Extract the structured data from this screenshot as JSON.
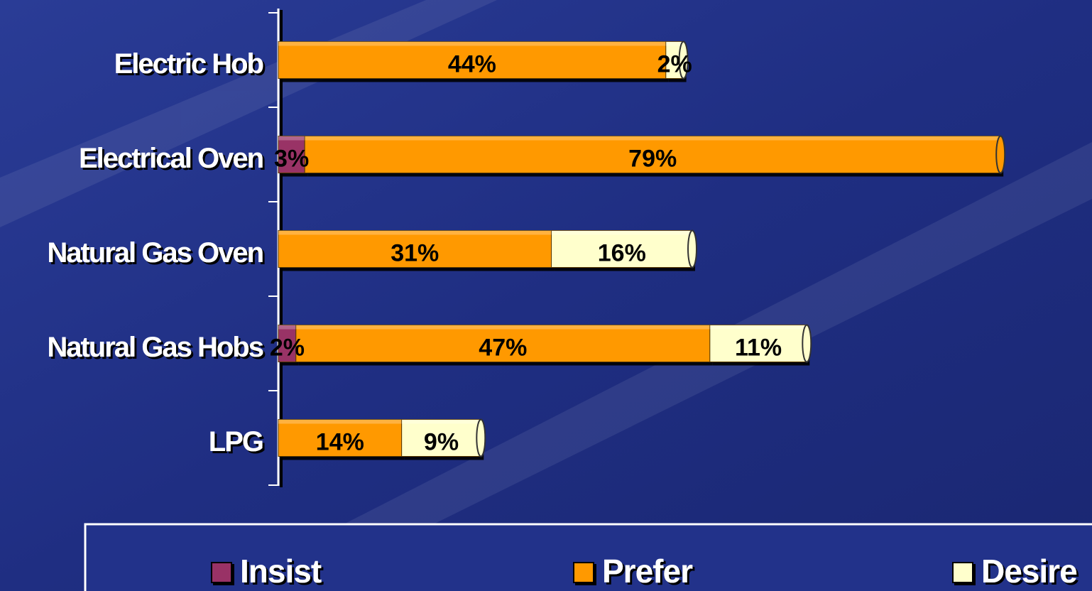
{
  "chart_data": {
    "type": "stacked-bar-horizontal",
    "categories": [
      "Electric Hob",
      "Electrical Oven",
      "Natural Gas Oven",
      "Natural Gas Hobs",
      "LPG"
    ],
    "series": [
      {
        "name": "Insist",
        "color": "#993366",
        "values": [
          null,
          3,
          null,
          2,
          null
        ],
        "value_labels": [
          null,
          "3%",
          null,
          "2%",
          null
        ]
      },
      {
        "name": "Prefer",
        "color": "#ff9900",
        "values": [
          44,
          79,
          31,
          47,
          14
        ],
        "value_labels": [
          "44%",
          "79%",
          "31%",
          "47%",
          "14%"
        ]
      },
      {
        "name": "Desire",
        "color": "#ffffcc",
        "values": [
          2,
          null,
          16,
          11,
          9
        ],
        "value_labels": [
          "2%",
          null,
          "16%",
          "11%",
          "9%"
        ]
      }
    ],
    "xlim": [
      0,
      84
    ]
  }
}
